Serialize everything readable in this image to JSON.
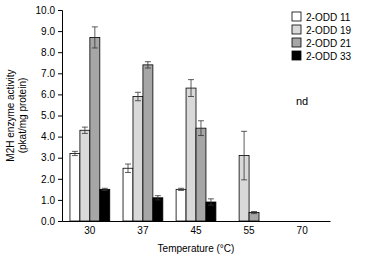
{
  "chart_data": {
    "type": "bar",
    "xlabel": "Temperature (°C)",
    "ylabel": [
      "M2H enzyme activity",
      "(pkat/mg protein)"
    ],
    "categories": [
      "30",
      "37",
      "45",
      "55",
      "70"
    ],
    "series": [
      {
        "name": "2-ODD 11",
        "color": "#ffffff",
        "values": [
          3.2,
          2.5,
          1.5,
          null,
          null
        ],
        "errors": [
          0.1,
          0.2,
          0.05,
          null,
          null
        ]
      },
      {
        "name": "2-ODD 19",
        "color": "#d9d9d9",
        "values": [
          4.3,
          5.9,
          6.3,
          3.1,
          null
        ],
        "errors": [
          0.15,
          0.2,
          0.4,
          1.15,
          null
        ]
      },
      {
        "name": "2-ODD 21",
        "color": "#a6a6a6",
        "values": [
          8.7,
          7.4,
          4.4,
          0.4,
          null
        ],
        "errors": [
          0.5,
          0.15,
          0.35,
          0.05,
          null
        ]
      },
      {
        "name": "2-ODD 33",
        "color": "#000000",
        "values": [
          1.5,
          1.1,
          0.9,
          null,
          null
        ],
        "errors": [
          0.05,
          0.1,
          0.15,
          null,
          null
        ]
      }
    ],
    "ylim": [
      0,
      10
    ],
    "yticks": [
      {
        "value": 0,
        "label": "0.0"
      },
      {
        "value": 1,
        "label": "1.0"
      },
      {
        "value": 2,
        "label": "2.0"
      },
      {
        "value": 3,
        "label": "3.0"
      },
      {
        "value": 4,
        "label": "4.0"
      },
      {
        "value": 5,
        "label": "5.0"
      },
      {
        "value": 6,
        "label": "6.0"
      },
      {
        "value": 7,
        "label": "7.0"
      },
      {
        "value": 8,
        "label": "8.0"
      },
      {
        "value": 9,
        "label": "9.0"
      },
      {
        "value": 10,
        "label": "10.0"
      }
    ],
    "grid": false,
    "legend": "top-right",
    "annotations": [
      {
        "text": "nd",
        "category": "70"
      }
    ]
  }
}
